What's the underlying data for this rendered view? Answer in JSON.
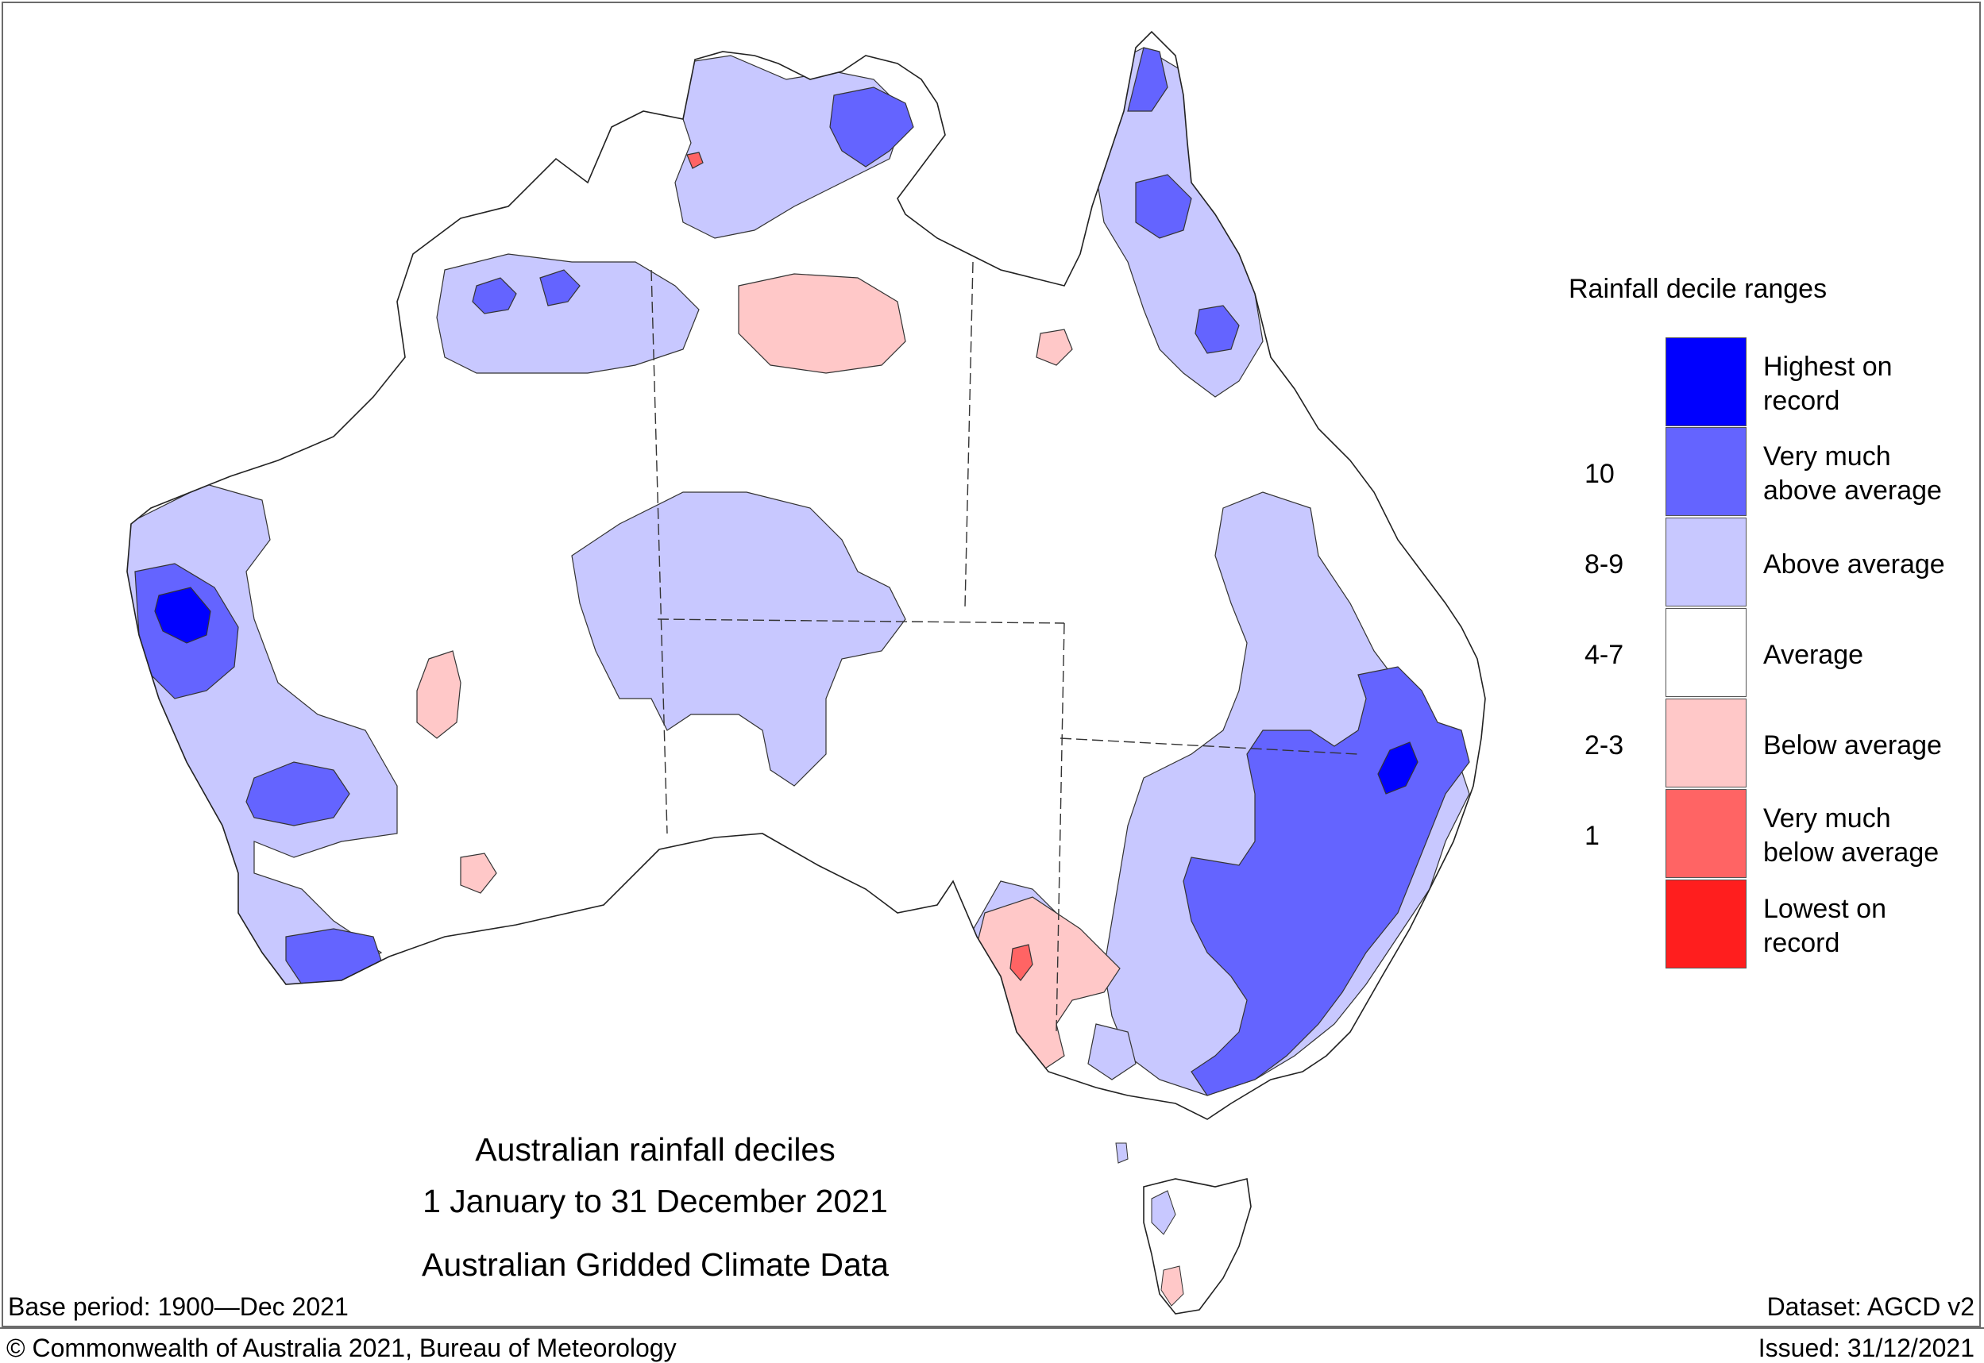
{
  "title": {
    "line1": "Australian rainfall deciles",
    "line2": "1 January to 31 December 2021",
    "line3": "Australian Gridded Climate Data"
  },
  "footer": {
    "base_period": "Base period: 1900—Dec 2021",
    "dataset": "Dataset: AGCD v2",
    "copyright": "© Commonwealth of Australia 2021, Bureau of Meteorology",
    "issued": "Issued: 31/12/2021"
  },
  "legend": {
    "heading": "Rainfall decile ranges",
    "categories": [
      {
        "label_line1": "Highest on",
        "label_line2": "record",
        "range": "",
        "color": "#0000ff"
      },
      {
        "label_line1": "Very much",
        "label_line2": "above average",
        "range": "10",
        "color": "#6464ff"
      },
      {
        "label_line1": "Above average",
        "label_line2": "",
        "range": "8-9",
        "color": "#c8c8ff"
      },
      {
        "label_line1": "Average",
        "label_line2": "",
        "range": "4-7",
        "color": "#ffffff"
      },
      {
        "label_line1": "Below average",
        "label_line2": "",
        "range": "2-3",
        "color": "#ffc8c8"
      },
      {
        "label_line1": "Very much",
        "label_line2": "below average",
        "range": "1",
        "color": "#ff6464"
      },
      {
        "label_line1": "Lowest on",
        "label_line2": "record",
        "range": "",
        "color": "#ff1e1e"
      }
    ]
  },
  "map": {
    "region": "Australia",
    "colors": {
      "land_average": "#ffffff",
      "above": "#c8c8ff",
      "very_much_above": "#6464ff",
      "highest": "#0000ff",
      "below": "#ffc8c8",
      "very_much_below": "#ff6464",
      "outline": "#333333"
    }
  }
}
